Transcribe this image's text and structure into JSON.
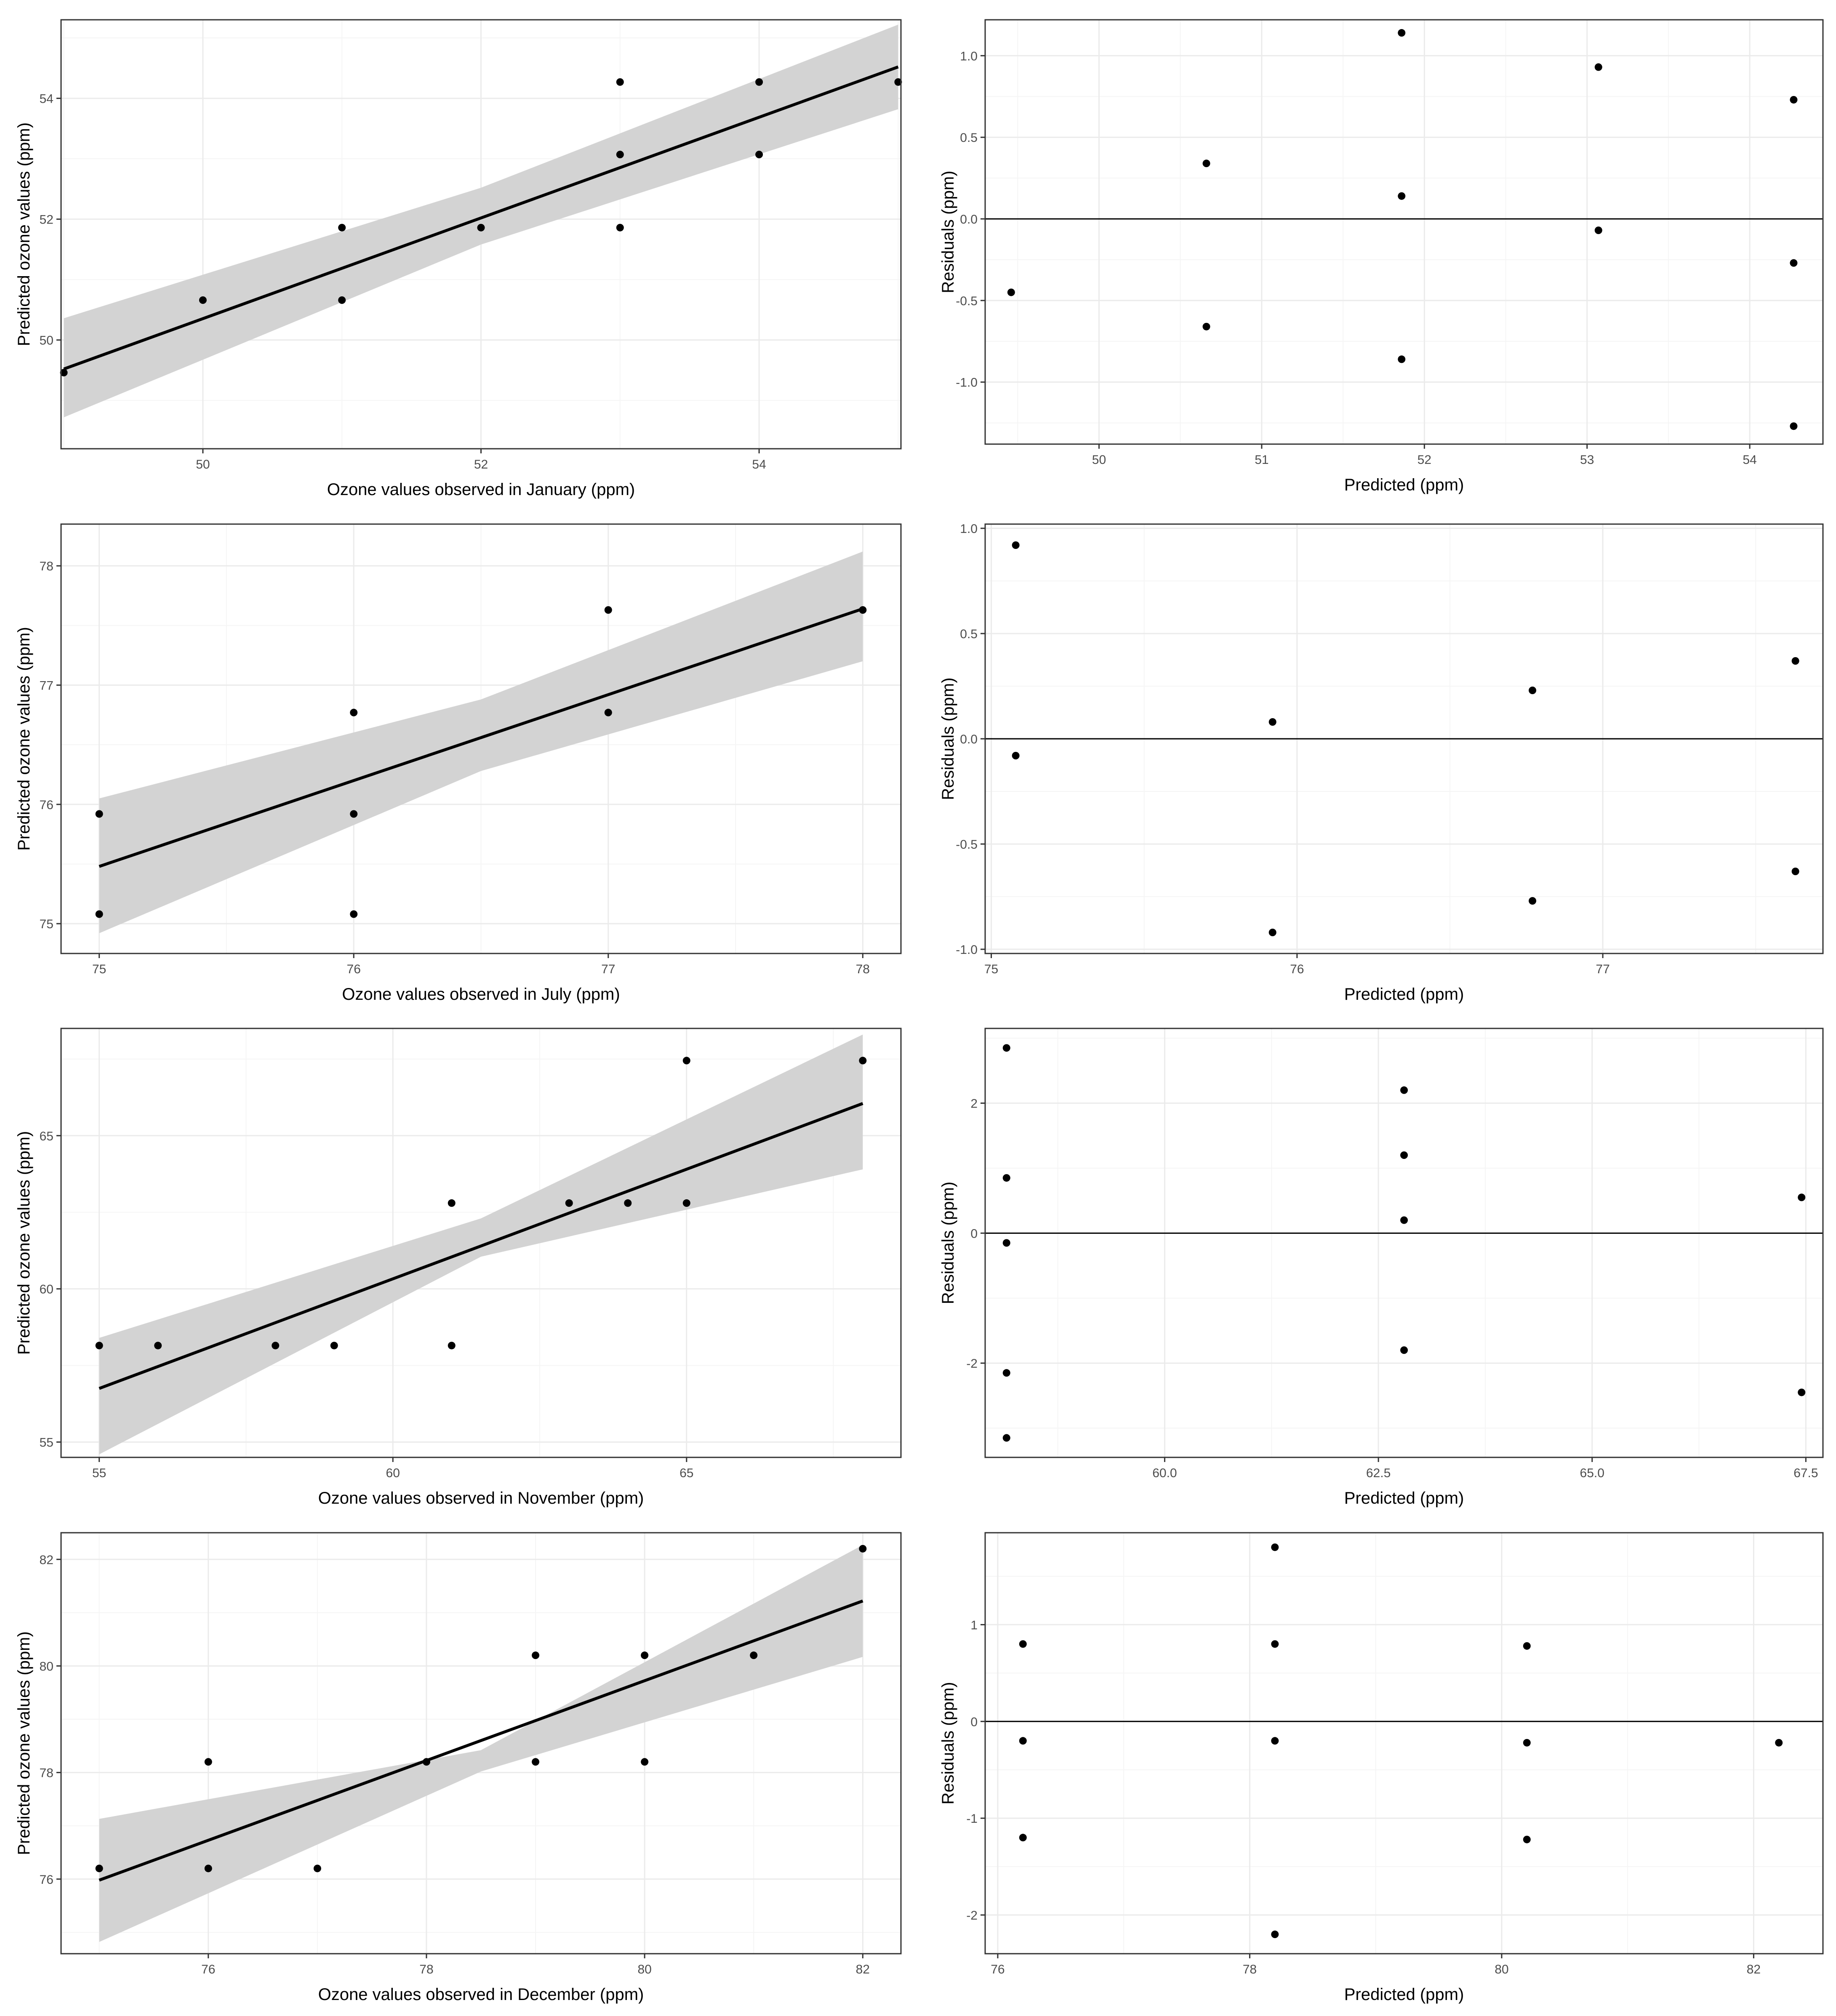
{
  "colors": {
    "panel_border": "#333333",
    "grid_major": "#ebebeb",
    "grid_minor": "#f5f5f5",
    "ribbon": "#d3d3d3",
    "line": "#000000",
    "point": "#000000",
    "tick_text": "#4d4d4d"
  },
  "chart_data": [
    {
      "type": "scatter",
      "panel": "january-fit",
      "xlabel": "Ozone values observed in January (ppm)",
      "ylabel": "Predicted ozone values (ppm)",
      "xlim": [
        48.98,
        55.02
      ],
      "ylim": [
        48.2,
        55.3
      ],
      "xticks": [
        "50",
        "52",
        "54"
      ],
      "yticks": [
        "50",
        "52",
        "54"
      ],
      "points": [
        [
          49,
          49.46
        ],
        [
          50,
          50.66
        ],
        [
          51,
          50.66
        ],
        [
          51,
          51.86
        ],
        [
          52,
          51.86
        ],
        [
          53,
          51.86
        ],
        [
          53,
          53.07
        ],
        [
          53,
          54.27
        ],
        [
          54,
          53.07
        ],
        [
          54,
          54.27
        ],
        [
          55,
          54.27
        ]
      ],
      "fit": {
        "x0": 49,
        "y0": 49.52,
        "x1": 55,
        "y1": 54.52
      },
      "band": {
        "lower": [
          48.72,
          51.58,
          53.82
        ],
        "upper": [
          50.36,
          52.52,
          55.22
        ]
      }
    },
    {
      "type": "scatter",
      "panel": "january-residuals",
      "xlabel": "Predicted (ppm)",
      "ylabel": "Residuals (ppm)",
      "xlim": [
        49.3,
        54.45
      ],
      "ylim": [
        -1.38,
        1.22
      ],
      "xticks": [
        "50",
        "51",
        "52",
        "53",
        "54"
      ],
      "yticks": [
        "-1.0",
        "-0.5",
        "0.0",
        "0.5",
        "1.0"
      ],
      "hline": 0,
      "points": [
        [
          49.46,
          -0.45
        ],
        [
          50.66,
          0.34
        ],
        [
          50.66,
          -0.66
        ],
        [
          51.86,
          1.14
        ],
        [
          51.86,
          0.14
        ],
        [
          51.86,
          -0.86
        ],
        [
          53.07,
          0.93
        ],
        [
          53.07,
          -0.07
        ],
        [
          54.27,
          0.73
        ],
        [
          54.27,
          -0.27
        ],
        [
          54.27,
          -1.27
        ]
      ]
    },
    {
      "type": "scatter",
      "panel": "july-fit",
      "xlabel": "Ozone values observed in July (ppm)",
      "ylabel": "Predicted ozone values (ppm)",
      "xlim": [
        74.85,
        78.15
      ],
      "ylim": [
        74.75,
        78.35
      ],
      "xticks": [
        "75",
        "76",
        "77",
        "78"
      ],
      "yticks": [
        "75",
        "76",
        "77",
        "78"
      ],
      "points": [
        [
          75,
          75.08
        ],
        [
          75,
          75.92
        ],
        [
          76,
          75.08
        ],
        [
          76,
          75.92
        ],
        [
          76,
          76.77
        ],
        [
          77,
          76.77
        ],
        [
          77,
          77.63
        ],
        [
          78,
          77.63
        ]
      ],
      "fit": {
        "x0": 75,
        "y0": 75.48,
        "x1": 78,
        "y1": 77.64
      },
      "band": {
        "lower": [
          74.92,
          76.28,
          77.2
        ],
        "upper": [
          76.05,
          76.88,
          78.12
        ]
      }
    },
    {
      "type": "scatter",
      "panel": "july-residuals",
      "xlabel": "Predicted (ppm)",
      "ylabel": "Residuals (ppm)",
      "xlim": [
        74.98,
        77.72
      ],
      "ylim": [
        -1.02,
        1.02
      ],
      "xticks": [
        "75",
        "76",
        "77"
      ],
      "yticks": [
        "-1.0",
        "-0.5",
        "0.0",
        "0.5",
        "1.0"
      ],
      "hline": 0,
      "points": [
        [
          75.08,
          0.92
        ],
        [
          75.08,
          -0.08
        ],
        [
          75.92,
          0.08
        ],
        [
          75.92,
          -0.92
        ],
        [
          76.77,
          0.23
        ],
        [
          76.77,
          -0.77
        ],
        [
          77.63,
          0.37
        ],
        [
          77.63,
          -0.63
        ]
      ]
    },
    {
      "type": "scatter",
      "panel": "november-fit",
      "xlabel": "Ozone values observed in November (ppm)",
      "ylabel": "Predicted ozone values (ppm)",
      "xlim": [
        54.35,
        68.65
      ],
      "ylim": [
        54.5,
        68.5
      ],
      "xticks": [
        "55",
        "60",
        "65"
      ],
      "yticks": [
        "55",
        "60",
        "65"
      ],
      "points": [
        [
          55,
          58.15
        ],
        [
          56,
          58.15
        ],
        [
          58,
          58.15
        ],
        [
          59,
          58.15
        ],
        [
          61,
          58.15
        ],
        [
          61,
          62.8
        ],
        [
          63,
          62.8
        ],
        [
          64,
          62.8
        ],
        [
          65,
          62.8
        ],
        [
          65,
          67.45
        ],
        [
          68,
          67.45
        ]
      ],
      "fit": {
        "x0": 55,
        "y0": 56.75,
        "x1": 68,
        "y1": 66.05
      },
      "band": {
        "lower": [
          54.6,
          61.05,
          63.9
        ],
        "upper": [
          58.4,
          62.3,
          68.3
        ]
      }
    },
    {
      "type": "scatter",
      "panel": "november-residuals",
      "xlabel": "Predicted (ppm)",
      "ylabel": "Residuals (ppm)",
      "xlim": [
        57.9,
        67.7
      ],
      "ylim": [
        -3.45,
        3.15
      ],
      "xticks": [
        "60.0",
        "62.5",
        "65.0",
        "67.5"
      ],
      "yticks": [
        "-2",
        "0",
        "2"
      ],
      "hline": 0,
      "points": [
        [
          58.15,
          2.85
        ],
        [
          58.15,
          0.85
        ],
        [
          58.15,
          -0.15
        ],
        [
          58.15,
          -2.15
        ],
        [
          58.15,
          -3.15
        ],
        [
          62.8,
          2.2
        ],
        [
          62.8,
          1.2
        ],
        [
          62.8,
          0.2
        ],
        [
          62.8,
          -1.8
        ],
        [
          67.45,
          0.55
        ],
        [
          67.45,
          -2.45
        ]
      ]
    },
    {
      "type": "scatter",
      "panel": "december-fit",
      "xlabel": "Ozone values observed in December (ppm)",
      "ylabel": "Predicted ozone values (ppm)",
      "xlim": [
        74.65,
        82.35
      ],
      "ylim": [
        74.6,
        82.5
      ],
      "xticks": [
        "76",
        "78",
        "80",
        "82"
      ],
      "yticks": [
        "76",
        "78",
        "80",
        "82"
      ],
      "points": [
        [
          75,
          76.2
        ],
        [
          76,
          76.2
        ],
        [
          76,
          78.2
        ],
        [
          77,
          76.2
        ],
        [
          78,
          78.2
        ],
        [
          79,
          78.2
        ],
        [
          79,
          80.2
        ],
        [
          80,
          78.2
        ],
        [
          80,
          80.2
        ],
        [
          81,
          80.2
        ],
        [
          82,
          82.2
        ]
      ],
      "fit": {
        "x0": 75,
        "y0": 75.98,
        "x1": 82,
        "y1": 81.22
      },
      "band": {
        "lower": [
          74.82,
          78.02,
          80.17
        ],
        "upper": [
          77.13,
          78.42,
          82.27
        ]
      }
    },
    {
      "type": "scatter",
      "panel": "december-residuals",
      "xlabel": "Predicted (ppm)",
      "ylabel": "Residuals (ppm)",
      "xlim": [
        75.9,
        82.55
      ],
      "ylim": [
        -2.4,
        1.95
      ],
      "xticks": [
        "76",
        "78",
        "80",
        "82"
      ],
      "yticks": [
        "-2",
        "-1",
        "0",
        "1"
      ],
      "hline": 0,
      "points": [
        [
          76.2,
          0.8
        ],
        [
          76.2,
          -0.2
        ],
        [
          76.2,
          -1.2
        ],
        [
          78.2,
          1.8
        ],
        [
          78.2,
          0.8
        ],
        [
          78.2,
          -0.2
        ],
        [
          78.2,
          -2.2
        ],
        [
          80.2,
          0.78
        ],
        [
          80.2,
          -0.22
        ],
        [
          80.2,
          -1.22
        ],
        [
          82.2,
          -0.22
        ]
      ]
    }
  ]
}
